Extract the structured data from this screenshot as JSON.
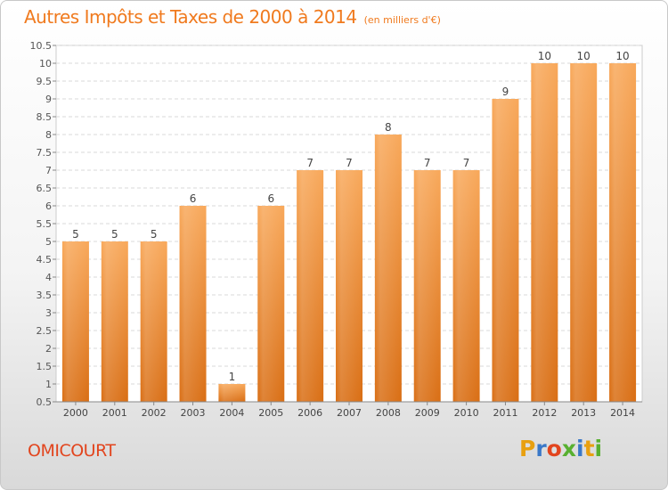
{
  "chart_data": {
    "type": "bar",
    "title": "Autres Impôts et Taxes de 2000 à 2014",
    "subtitle": "(en milliers d'€)",
    "categories": [
      "2000",
      "2001",
      "2002",
      "2003",
      "2004",
      "2005",
      "2006",
      "2007",
      "2008",
      "2009",
      "2010",
      "2011",
      "2012",
      "2013",
      "2014"
    ],
    "values": [
      5,
      5,
      5,
      6,
      1,
      6,
      7,
      7,
      8,
      7,
      7,
      9,
      10,
      10,
      10
    ],
    "data_labels": [
      "5",
      "5",
      "5",
      "6",
      "1",
      "6",
      "7",
      "7",
      "8",
      "7",
      "7",
      "9",
      "10",
      "10",
      "10"
    ],
    "ylim": [
      0.5,
      10.5
    ],
    "yticks": [
      "0.5",
      "1",
      "1.5",
      "2",
      "2.5",
      "3",
      "3.5",
      "4",
      "4.5",
      "5",
      "5.5",
      "6",
      "6.5",
      "7",
      "7.5",
      "8",
      "8.5",
      "9",
      "9.5",
      "10",
      "10.5"
    ],
    "grid": true,
    "legend": "none",
    "bar_color": "#f08a2a"
  },
  "footer": {
    "commune": "OMICOURT",
    "logo": [
      "P",
      "r",
      "o",
      "x",
      "i",
      "t",
      "i"
    ]
  }
}
